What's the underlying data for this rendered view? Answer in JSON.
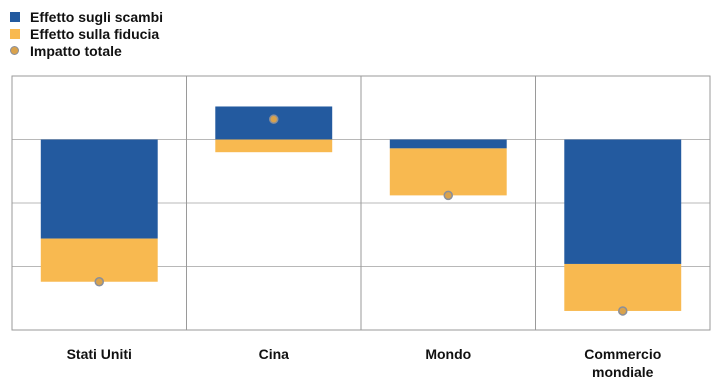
{
  "legend": {
    "trade": "Effetto sugli scambi",
    "confidence": "Effetto sulla fiducia",
    "total": "Impatto totale"
  },
  "colors": {
    "trade": "#235a9f",
    "confidence": "#f8b950",
    "total_fill": "#d9a24c",
    "total_stroke": "#8a8f9a",
    "grid": "#b8b8b8",
    "border": "#9a9a9a"
  },
  "chart_data": {
    "type": "bar",
    "stacked": true,
    "categories": [
      [
        "Stati Uniti"
      ],
      [
        "Cina"
      ],
      [
        "Mondo"
      ],
      [
        "Commercio",
        "mondiale"
      ]
    ],
    "series": [
      {
        "name": "Effetto sugli scambi",
        "values": [
          -0.78,
          0.26,
          -0.07,
          -0.98
        ]
      },
      {
        "name": "Effetto sulla fiducia",
        "values": [
          -0.34,
          -0.1,
          -0.37,
          -0.37
        ]
      }
    ],
    "total": {
      "name": "Impatto totale",
      "values": [
        -1.12,
        0.16,
        -0.44,
        -1.35
      ]
    },
    "ylim": [
      -1.5,
      0.5
    ],
    "grid": true,
    "legend_position": "top-left"
  }
}
